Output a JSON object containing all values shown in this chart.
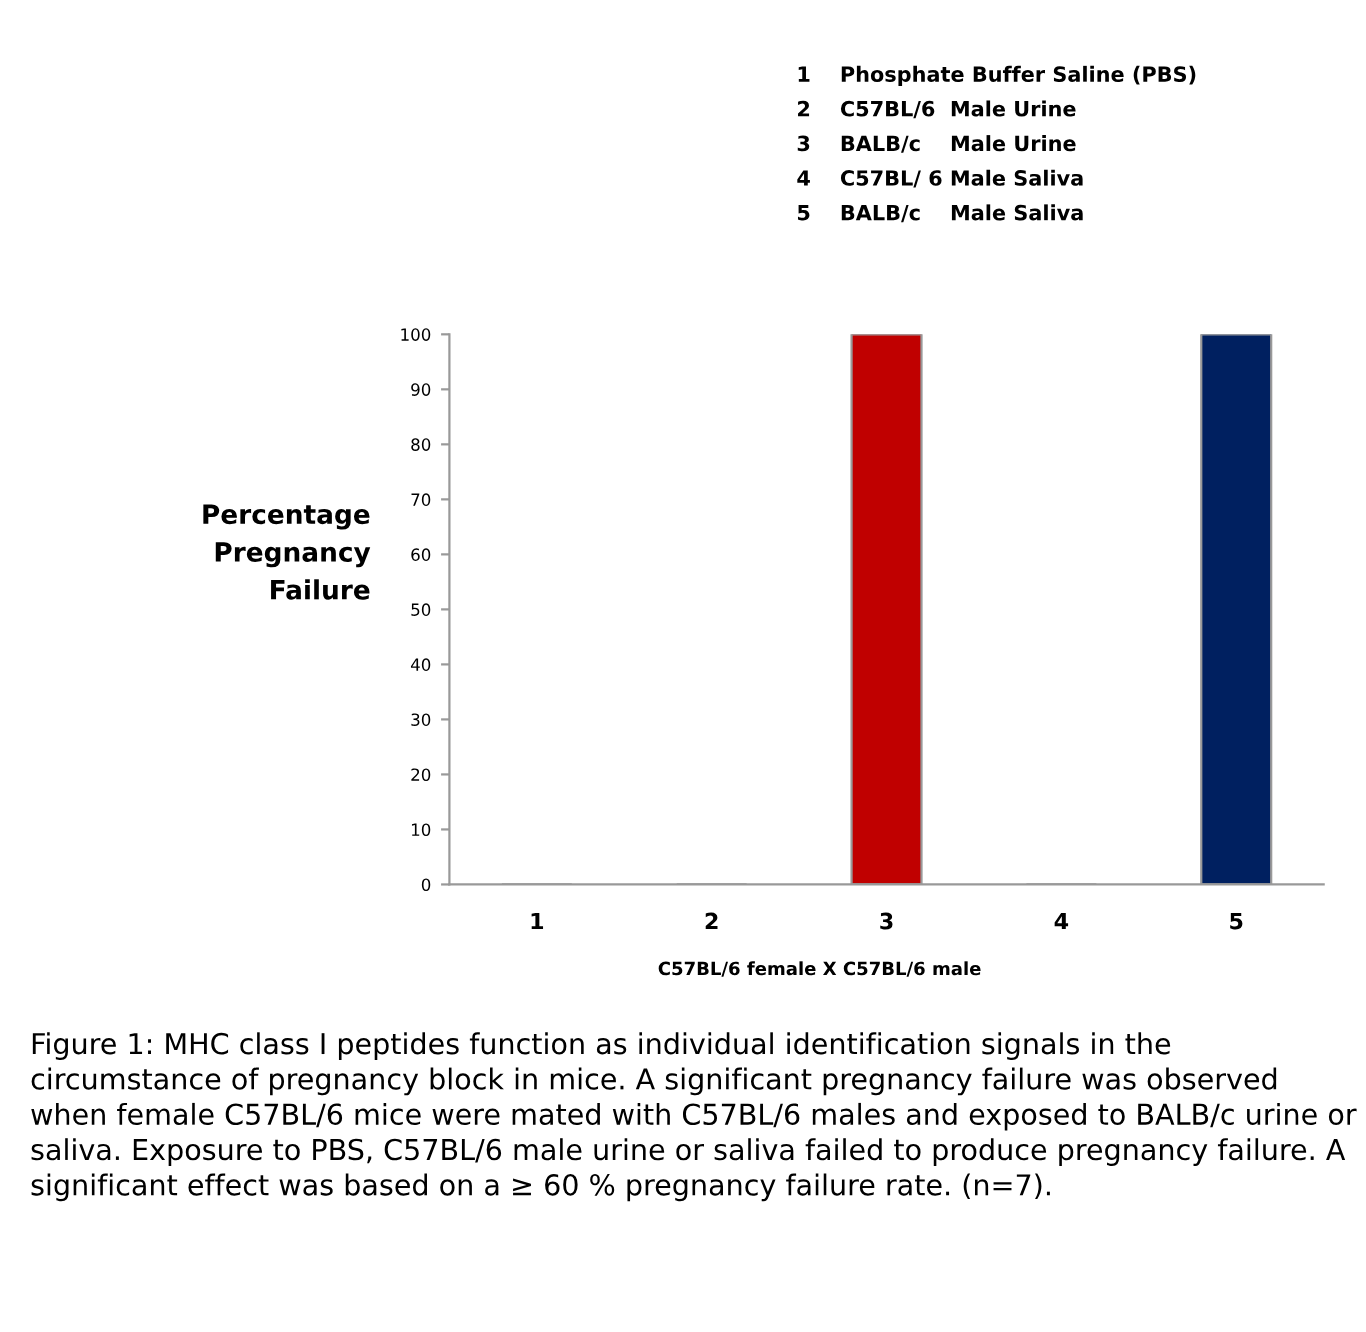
{
  "chart_data": {
    "type": "bar",
    "categories": [
      "1",
      "2",
      "3",
      "4",
      "5"
    ],
    "values": [
      0,
      0,
      100,
      0,
      100
    ],
    "colors": [
      "#c00000",
      "#c00000",
      "#c00000",
      "#002060",
      "#002060"
    ],
    "ylim": [
      0,
      100
    ],
    "yticks": [
      0,
      10,
      20,
      30,
      40,
      50,
      60,
      70,
      80,
      90,
      100
    ],
    "ylabel": "Percentage\nPregnancy\nFailure",
    "xlabel": "C57BL/6 female X C57BL/6 male",
    "grid": false,
    "annotations": [
      "1    Phosphate Buffer Saline (PBS)",
      "2    C57BL/6  Male Urine",
      "3    BALB/c    Male Urine",
      "4    C57BL/ 6 Male Saliva",
      "5    BALB/c    Male Saliva",
      "Figure 1: MHC class I peptides function as individual identification signals in the circumstance of pregnancy block in mice. A significant pregnancy failure was observed when female C57BL/6 mice were mated with C57BL/6 males and exposed to BALB/c urine or saliva. Exposure to PBS, C57BL/6 male urine or saliva failed to produce pregnancy failure. A significant effect was based on a ≥ 60 % pregnancy failure rate. (n=7)."
    ]
  }
}
